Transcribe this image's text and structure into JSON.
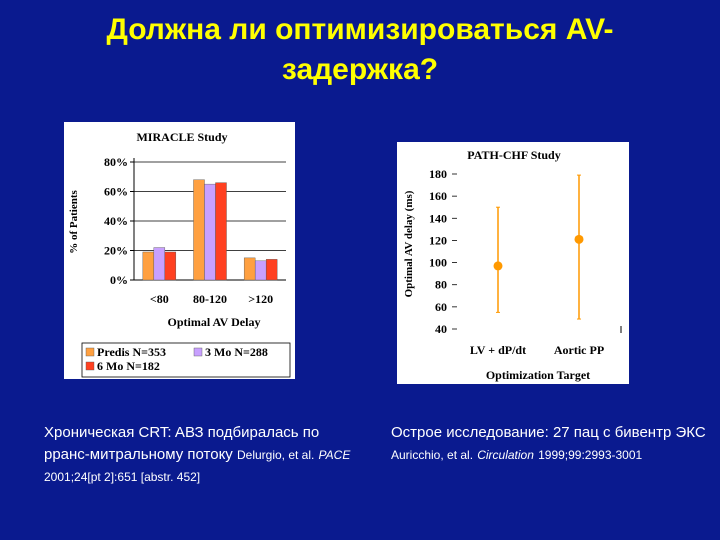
{
  "slide": {
    "title_line1": "Должна ли оптимизироваться AV-",
    "title_line2": "задержка?"
  },
  "colors": {
    "background": "#0a1a8f",
    "title": "#ffff00",
    "predis": "#ffa040",
    "mo3": "#c8a0ff",
    "mo6": "#ff4020",
    "point": "#ff9900"
  },
  "chart_data": [
    {
      "type": "bar",
      "title": "MIRACLE Study",
      "xlabel": "Optimal AV Delay",
      "ylabel": "% of Patients",
      "categories": [
        "<80",
        "80-120",
        ">120"
      ],
      "yticks": [
        "0%",
        "20%",
        "40%",
        "60%",
        "80%"
      ],
      "ylim": [
        0,
        80
      ],
      "grid": true,
      "legend_position": "bottom",
      "series": [
        {
          "name": "Predis N=353",
          "values": [
            19,
            68,
            15
          ]
        },
        {
          "name": "3 Mo N=288",
          "values": [
            22,
            65,
            13
          ]
        },
        {
          "name": "6 Mo N=182",
          "values": [
            19,
            66,
            14
          ]
        }
      ]
    },
    {
      "type": "scatter",
      "title": "PATH-CHF Study",
      "xlabel": "Optimization Target",
      "ylabel": "Optimal AV delay (ms)",
      "categories": [
        "LV + dP/dt",
        "Aortic PP"
      ],
      "yticks": [
        "40",
        "60",
        "80",
        "100",
        "120",
        "140",
        "160",
        "180"
      ],
      "ylim": [
        40,
        180
      ],
      "points": [
        {
          "category": "LV + dP/dt",
          "y": 97,
          "low": 55,
          "high": 150
        },
        {
          "category": "Aortic PP",
          "y": 121,
          "low": 49,
          "high": 179
        }
      ]
    }
  ],
  "captions": {
    "left_main": "Хроническая CRT: AВЗ подбиралась по рранс-митральному потоку",
    "left_ref_a": "Delurgio, et al.",
    "left_ref_b": "PACE",
    "left_ref_c": "2001;24[pt 2]:651 [abstr. 452]",
    "right_main": "Острое исследование: 27 пац с бивентр ЭКС",
    "right_ref_a": "Auricchio, et al.",
    "right_ref_b": "Circulation",
    "right_ref_c": "1999;99:2993-3001"
  }
}
